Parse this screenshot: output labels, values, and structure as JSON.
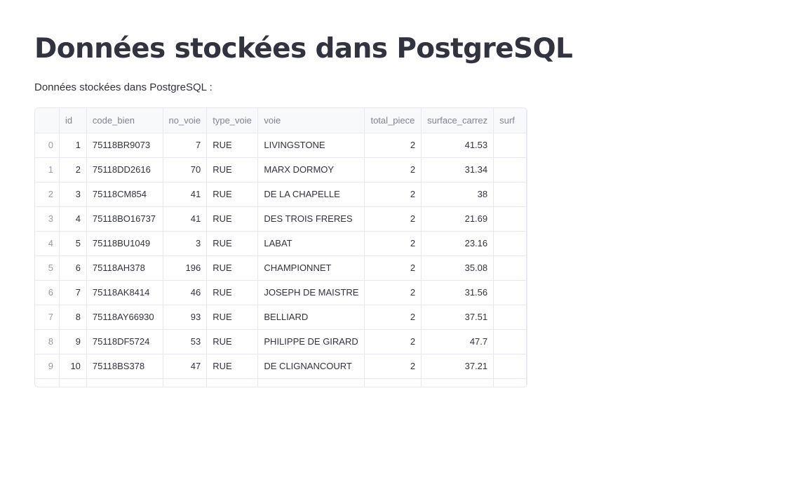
{
  "page": {
    "title": "Données stockées dans PostgreSQL",
    "subtitle": "Données stockées dans PostgreSQL :"
  },
  "table": {
    "columns": [
      "id",
      "code_bien",
      "no_voie",
      "type_voie",
      "voie",
      "total_piece",
      "surface_carrez",
      "surf"
    ],
    "rows": [
      {
        "index": "0",
        "id": "1",
        "code_bien": "75118BR9073",
        "no_voie": "7",
        "type_voie": "RUE",
        "voie": "LIVINGSTONE",
        "total_piece": "2",
        "surface_carrez": "41.53"
      },
      {
        "index": "1",
        "id": "2",
        "code_bien": "75118DD2616",
        "no_voie": "70",
        "type_voie": "RUE",
        "voie": "MARX DORMOY",
        "total_piece": "2",
        "surface_carrez": "31.34"
      },
      {
        "index": "2",
        "id": "3",
        "code_bien": "75118CM854",
        "no_voie": "41",
        "type_voie": "RUE",
        "voie": "DE LA CHAPELLE",
        "total_piece": "2",
        "surface_carrez": "38"
      },
      {
        "index": "3",
        "id": "4",
        "code_bien": "75118BO16737",
        "no_voie": "41",
        "type_voie": "RUE",
        "voie": "DES TROIS FRERES",
        "total_piece": "2",
        "surface_carrez": "21.69"
      },
      {
        "index": "4",
        "id": "5",
        "code_bien": "75118BU1049",
        "no_voie": "3",
        "type_voie": "RUE",
        "voie": "LABAT",
        "total_piece": "2",
        "surface_carrez": "23.16"
      },
      {
        "index": "5",
        "id": "6",
        "code_bien": "75118AH378",
        "no_voie": "196",
        "type_voie": "RUE",
        "voie": "CHAMPIONNET",
        "total_piece": "2",
        "surface_carrez": "35.08"
      },
      {
        "index": "6",
        "id": "7",
        "code_bien": "75118AK8414",
        "no_voie": "46",
        "type_voie": "RUE",
        "voie": "JOSEPH DE MAISTRE",
        "total_piece": "2",
        "surface_carrez": "31.56"
      },
      {
        "index": "7",
        "id": "8",
        "code_bien": "75118AY66930",
        "no_voie": "93",
        "type_voie": "RUE",
        "voie": "BELLIARD",
        "total_piece": "2",
        "surface_carrez": "37.51"
      },
      {
        "index": "8",
        "id": "9",
        "code_bien": "75118DF5724",
        "no_voie": "53",
        "type_voie": "RUE",
        "voie": "PHILIPPE DE GIRARD",
        "total_piece": "2",
        "surface_carrez": "47.7"
      },
      {
        "index": "9",
        "id": "10",
        "code_bien": "75118BS378",
        "no_voie": "47",
        "type_voie": "RUE",
        "voie": "DE CLIGNANCOURT",
        "total_piece": "2",
        "surface_carrez": "37.21"
      }
    ]
  }
}
